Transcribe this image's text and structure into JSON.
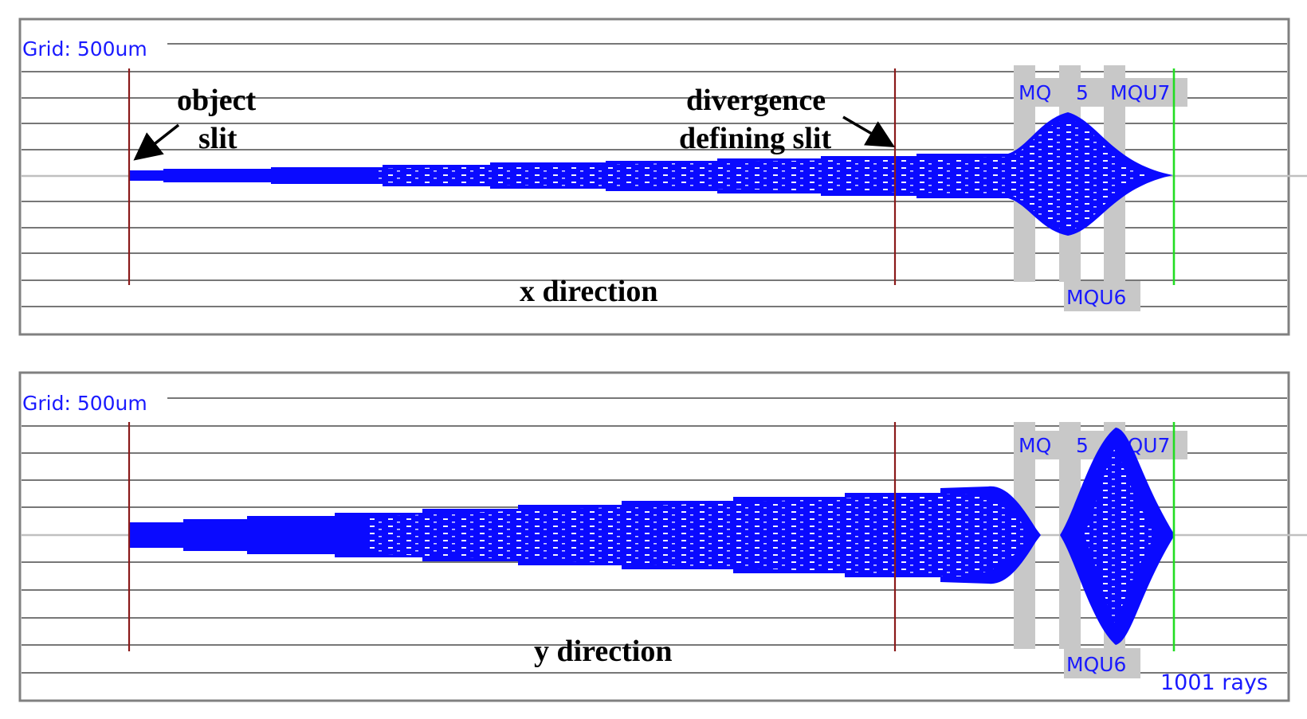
{
  "colors": {
    "beam": "#0a0aff",
    "grid": "#4a4a4a",
    "slit": "#8b1a1a",
    "image_plane": "#22dd22",
    "magnet": "#c8c8c8",
    "axis": "#c0c0c0",
    "label": "#1a1aff"
  },
  "panels": [
    {
      "id": "x",
      "grid_label": "Grid: 500um",
      "direction_label": "x direction",
      "slit_annotation_1": "object",
      "slit_annotation_2": "slit",
      "div_annotation_1": "divergence",
      "div_annotation_2": "defining slit",
      "mq5_label_a": "MQ",
      "mq5_label_b": "5",
      "mqu7_label": "MQU7",
      "mqu6_label": "MQU6"
    },
    {
      "id": "y",
      "grid_label": "Grid: 500um",
      "direction_label": "y direction",
      "mq5_label_a": "MQ",
      "mq5_label_b": "5",
      "mqu7_label": "MQU7",
      "mqu6_label": "MQU6",
      "rays_label": "1001 rays"
    }
  ]
}
